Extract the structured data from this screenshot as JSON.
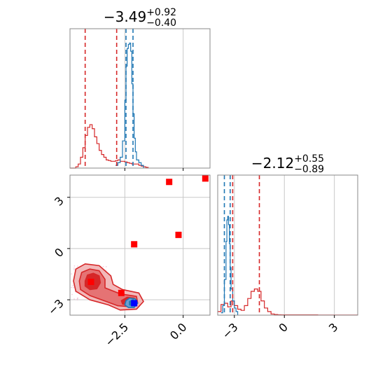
{
  "chart_data": [
    {
      "type": "histogram",
      "panel": "marginal-x",
      "title": {
        "value": "−3.49",
        "plus": "+0.92",
        "minus": "−0.40"
      },
      "xlim": [
        -4.85,
        1.15
      ],
      "grid": true,
      "red_lines": [
        -4.2,
        -2.85
      ],
      "blue_lines": [
        -2.45,
        -2.15
      ],
      "blue_hist": {
        "x": [
          -2.9,
          -2.8,
          -2.7,
          -2.6,
          -2.5,
          -2.45,
          -2.4,
          -2.35,
          -2.3,
          -2.25,
          -2.2,
          -2.15,
          -2.1,
          -2.05,
          -2.0,
          -1.9,
          -1.8,
          -1.7
        ],
        "y": [
          0.02,
          0.04,
          0.08,
          0.2,
          0.5,
          0.75,
          0.88,
          0.91,
          0.92,
          0.86,
          0.62,
          0.4,
          0.22,
          0.12,
          0.06,
          0.04,
          0.02,
          0
        ]
      },
      "red_hist": {
        "x": [
          -4.85,
          -4.6,
          -4.5,
          -4.4,
          -4.3,
          -4.2,
          -4.1,
          -4.0,
          -3.9,
          -3.8,
          -3.7,
          -3.6,
          -3.5,
          -3.4,
          -3.3,
          -3.2,
          -3.1,
          -3.0,
          -2.9,
          -2.8,
          -2.7,
          -2.6,
          -2.5,
          -2.4,
          -2.3,
          -2.2,
          -2.1,
          -2.0,
          -1.9,
          -1.8,
          -1.7,
          -1.6,
          -1.5
        ],
        "y": [
          0,
          0.01,
          0.03,
          0.08,
          0.15,
          0.24,
          0.3,
          0.32,
          0.29,
          0.23,
          0.18,
          0.13,
          0.1,
          0.08,
          0.06,
          0.055,
          0.05,
          0.05,
          0.055,
          0.06,
          0.05,
          0.05,
          0.045,
          0.04,
          0.035,
          0.03,
          0.03,
          0.03,
          0.02,
          0.015,
          0.01,
          0.005,
          0
        ]
      }
    },
    {
      "type": "histogram",
      "panel": "marginal-y",
      "title": {
        "value": "−2.12",
        "plus": "+0.55",
        "minus": "−0.89"
      },
      "xlim": [
        -4.0,
        4.4
      ],
      "xticks": [
        -3,
        0,
        3
      ],
      "xtick_labels": [
        "−3",
        "0",
        "3"
      ],
      "grid": true,
      "red_lines": [
        -3.1,
        -1.5
      ],
      "blue_lines": [
        -3.6,
        -3.25
      ],
      "blue_hist": {
        "x": [
          -3.8,
          -3.7,
          -3.6,
          -3.5,
          -3.45,
          -3.4,
          -3.35,
          -3.3,
          -3.25,
          -3.2,
          -3.1,
          -3.0,
          -2.9,
          -2.8
        ],
        "y": [
          0.02,
          0.08,
          0.3,
          0.62,
          0.8,
          0.83,
          0.76,
          0.6,
          0.4,
          0.22,
          0.12,
          0.06,
          0.03,
          0
        ]
      },
      "red_hist": {
        "x": [
          -4.0,
          -3.8,
          -3.6,
          -3.4,
          -3.2,
          -3.0,
          -2.8,
          -2.6,
          -2.4,
          -2.2,
          -2.0,
          -1.8,
          -1.6,
          -1.4,
          -1.2,
          -1.0,
          -0.8,
          -0.6,
          -0.4,
          -0.2,
          0.0,
          1.0,
          2.0,
          3.0,
          4.4
        ],
        "y": [
          0.03,
          0.09,
          0.1,
          0.07,
          0.12,
          0.08,
          0.05,
          0.04,
          0.08,
          0.14,
          0.2,
          0.22,
          0.2,
          0.12,
          0.06,
          0.03,
          0.01,
          0.005,
          0.003,
          0.002,
          0.002,
          0.002,
          0.001,
          0.001,
          0
        ]
      }
    },
    {
      "type": "scatter",
      "panel": "joint",
      "xlim": [
        -4.85,
        1.15
      ],
      "ylim": [
        -3.9,
        4.3
      ],
      "xticks": [
        -2.5,
        0.0
      ],
      "xtick_labels": [
        "−2.5",
        "0.0"
      ],
      "yticks": [
        -3,
        0,
        3
      ],
      "ytick_labels": [
        "−3",
        "0",
        "3"
      ],
      "grid": true,
      "red_points": [
        {
          "x": -3.95,
          "y": -1.95
        },
        {
          "x": -2.65,
          "y": -2.6
        },
        {
          "x": -2.1,
          "y": 0.25
        },
        {
          "x": -0.2,
          "y": 0.8
        },
        {
          "x": -0.6,
          "y": 3.9
        },
        {
          "x": 0.95,
          "y": 4.1
        }
      ],
      "blue_points": [
        {
          "x": -2.1,
          "y": -3.2
        }
      ],
      "red_contours": [
        {
          "level": "outer",
          "points": [
            [
              -4.7,
              -1.9
            ],
            [
              -4.6,
              -1.2
            ],
            [
              -4.2,
              -0.9
            ],
            [
              -3.6,
              -1.0
            ],
            [
              -3.1,
              -1.6
            ],
            [
              -3.0,
              -2.1
            ],
            [
              -2.6,
              -2.4
            ],
            [
              -1.9,
              -2.6
            ],
            [
              -1.7,
              -3.1
            ],
            [
              -2.0,
              -3.55
            ],
            [
              -2.7,
              -3.6
            ],
            [
              -3.2,
              -3.3
            ],
            [
              -4.0,
              -3.0
            ],
            [
              -4.6,
              -2.5
            ]
          ]
        },
        {
          "level": "mid",
          "points": [
            [
              -4.45,
              -1.9
            ],
            [
              -4.35,
              -1.4
            ],
            [
              -4.0,
              -1.2
            ],
            [
              -3.6,
              -1.3
            ],
            [
              -3.35,
              -1.8
            ],
            [
              -3.35,
              -2.3
            ],
            [
              -2.7,
              -2.65
            ],
            [
              -2.0,
              -2.8
            ],
            [
              -1.95,
              -3.2
            ],
            [
              -2.3,
              -3.4
            ],
            [
              -2.8,
              -3.35
            ],
            [
              -3.4,
              -3.05
            ],
            [
              -4.0,
              -2.75
            ],
            [
              -4.4,
              -2.4
            ]
          ]
        },
        {
          "level": "inner-left",
          "points": [
            [
              -4.2,
              -1.9
            ],
            [
              -4.1,
              -1.55
            ],
            [
              -3.85,
              -1.45
            ],
            [
              -3.6,
              -1.6
            ],
            [
              -3.55,
              -2.0
            ],
            [
              -3.7,
              -2.35
            ],
            [
              -4.0,
              -2.4
            ],
            [
              -4.2,
              -2.2
            ]
          ]
        },
        {
          "level": "inner-right",
          "points": [
            [
              -2.65,
              -3.05
            ],
            [
              -2.4,
              -2.85
            ],
            [
              -2.1,
              -2.9
            ],
            [
              -2.05,
              -3.15
            ],
            [
              -2.3,
              -3.3
            ],
            [
              -2.6,
              -3.25
            ]
          ]
        }
      ],
      "blue_contours": [
        {
          "level": "outer",
          "points": [
            [
              -2.45,
              -3.05
            ],
            [
              -2.3,
              -2.9
            ],
            [
              -2.05,
              -2.95
            ],
            [
              -1.95,
              -3.2
            ],
            [
              -2.1,
              -3.45
            ],
            [
              -2.35,
              -3.45
            ],
            [
              -2.5,
              -3.3
            ]
          ]
        },
        {
          "level": "inner",
          "points": [
            [
              -2.3,
              -3.1
            ],
            [
              -2.15,
              -3.0
            ],
            [
              -2.05,
              -3.15
            ],
            [
              -2.15,
              -3.35
            ],
            [
              -2.3,
              -3.3
            ]
          ]
        }
      ]
    }
  ],
  "colors": {
    "red": "#d62728",
    "red_fill_outer": "#f2b8b9",
    "red_fill_mid": "#e57374",
    "red_fill_inner": "#d62728",
    "blue": "#1f77b4",
    "blue_fill": "#6a9fd0",
    "point_red": "#ff0000",
    "point_blue": "#0000ff",
    "grid": "#c8c8c8",
    "axis": "#888888"
  }
}
